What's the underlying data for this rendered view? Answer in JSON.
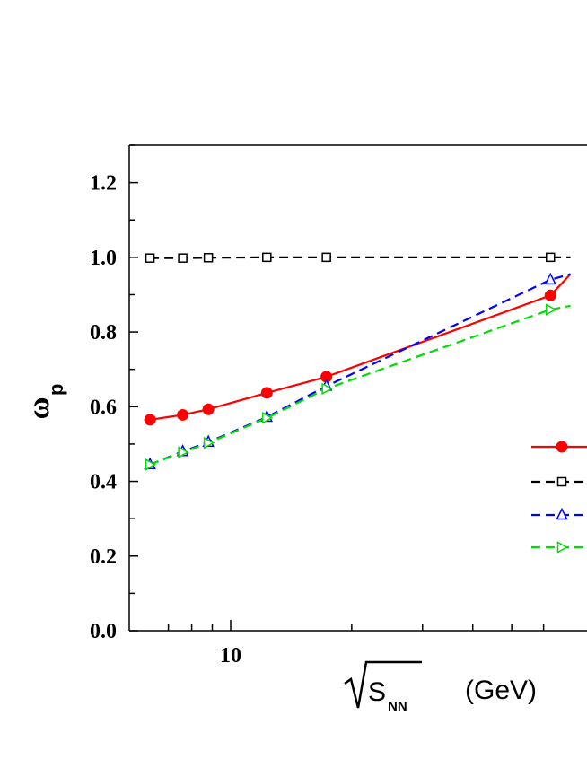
{
  "chart_data": {
    "type": "line",
    "ylabel": "ω",
    "ylabel_sub": "p",
    "xlabel_sqrt": "S",
    "xlabel_sub": "NN",
    "xlabel_unit": "(GeV)",
    "xscale": "log",
    "xlim": [
      6.0,
      70.0
    ],
    "ylim": [
      0.0,
      1.3
    ],
    "x_ticks": [
      10
    ],
    "x_tick_labels": [
      "10"
    ],
    "y_ticks": [
      0.0,
      0.2,
      0.4,
      0.6,
      0.8,
      1.0,
      1.2
    ],
    "y_tick_labels": [
      "0.0",
      "0.2",
      "0.4",
      "0.6",
      "0.8",
      "1.0",
      "1.2"
    ],
    "legend_placement": "right",
    "series": [
      {
        "color": "#ff0000",
        "dash": "solid",
        "marker": "filled-circle",
        "x": [
          6.3,
          7.6,
          8.8,
          12.3,
          17.3,
          62.4,
          70.0
        ],
        "y": [
          0.565,
          0.578,
          0.593,
          0.637,
          0.68,
          0.898,
          0.955
        ]
      },
      {
        "color": "#000000",
        "dash": "dashed",
        "marker": "open-square",
        "x": [
          6.3,
          7.6,
          8.8,
          12.3,
          17.3,
          62.4,
          70.0
        ],
        "y": [
          0.998,
          0.998,
          0.999,
          1.0,
          1.0,
          1.0,
          1.0
        ]
      },
      {
        "color": "#0000ff",
        "dash": "dashed",
        "marker": "open-triangle-up",
        "x": [
          6.3,
          7.6,
          8.8,
          12.3,
          17.3,
          62.4,
          70.0
        ],
        "y": [
          0.445,
          0.48,
          0.505,
          0.572,
          0.655,
          0.94,
          0.955
        ]
      },
      {
        "color": "#00dd00",
        "dash": "dashed",
        "marker": "open-triangle-right",
        "x": [
          6.3,
          7.6,
          8.8,
          12.3,
          17.3,
          62.4,
          70.0
        ],
        "y": [
          0.445,
          0.478,
          0.503,
          0.57,
          0.648,
          0.86,
          0.87
        ]
      }
    ]
  }
}
